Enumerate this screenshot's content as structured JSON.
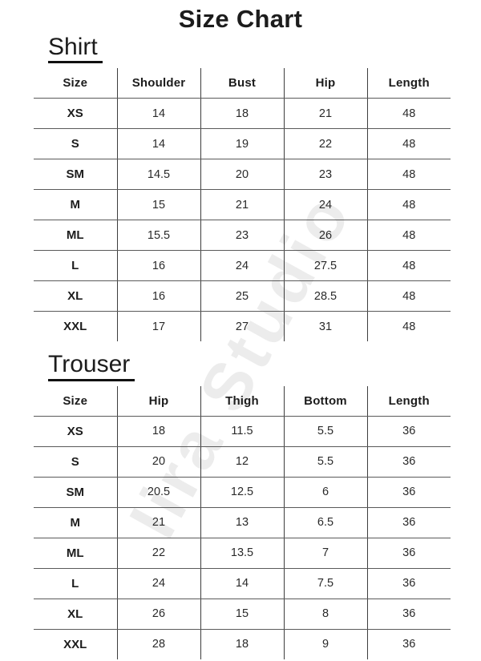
{
  "page": {
    "title": "Size Chart"
  },
  "watermark": {
    "text": "Iira Studio"
  },
  "colors": {
    "background": "#ffffff",
    "text": "#1c1c1c",
    "vertical_line": "#3d3d3d",
    "horizontal_line": "#5a5a5a",
    "watermark": "#ebebeb"
  },
  "sections": [
    {
      "heading": "Shirt",
      "table": {
        "headers": [
          "Size",
          "Shoulder",
          "Bust",
          "Hip",
          "Length"
        ],
        "rows": [
          [
            "XS",
            "14",
            "18",
            "21",
            "48"
          ],
          [
            "S",
            "14",
            "19",
            "22",
            "48"
          ],
          [
            "SM",
            "14.5",
            "20",
            "23",
            "48"
          ],
          [
            "M",
            "15",
            "21",
            "24",
            "48"
          ],
          [
            "ML",
            "15.5",
            "23",
            "26",
            "48"
          ],
          [
            "L",
            "16",
            "24",
            "27.5",
            "48"
          ],
          [
            "XL",
            "16",
            "25",
            "28.5",
            "48"
          ],
          [
            "XXL",
            "17",
            "27",
            "31",
            "48"
          ]
        ]
      }
    },
    {
      "heading": "Trouser",
      "table": {
        "headers": [
          "Size",
          "Hip",
          "Thigh",
          "Bottom",
          "Length"
        ],
        "rows": [
          [
            "XS",
            "18",
            "11.5",
            "5.5",
            "36"
          ],
          [
            "S",
            "20",
            "12",
            "5.5",
            "36"
          ],
          [
            "SM",
            "20.5",
            "12.5",
            "6",
            "36"
          ],
          [
            "M",
            "21",
            "13",
            "6.5",
            "36"
          ],
          [
            "ML",
            "22",
            "13.5",
            "7",
            "36"
          ],
          [
            "L",
            "24",
            "14",
            "7.5",
            "36"
          ],
          [
            "XL",
            "26",
            "15",
            "8",
            "36"
          ],
          [
            "XXL",
            "28",
            "18",
            "9",
            "36"
          ]
        ]
      }
    }
  ]
}
